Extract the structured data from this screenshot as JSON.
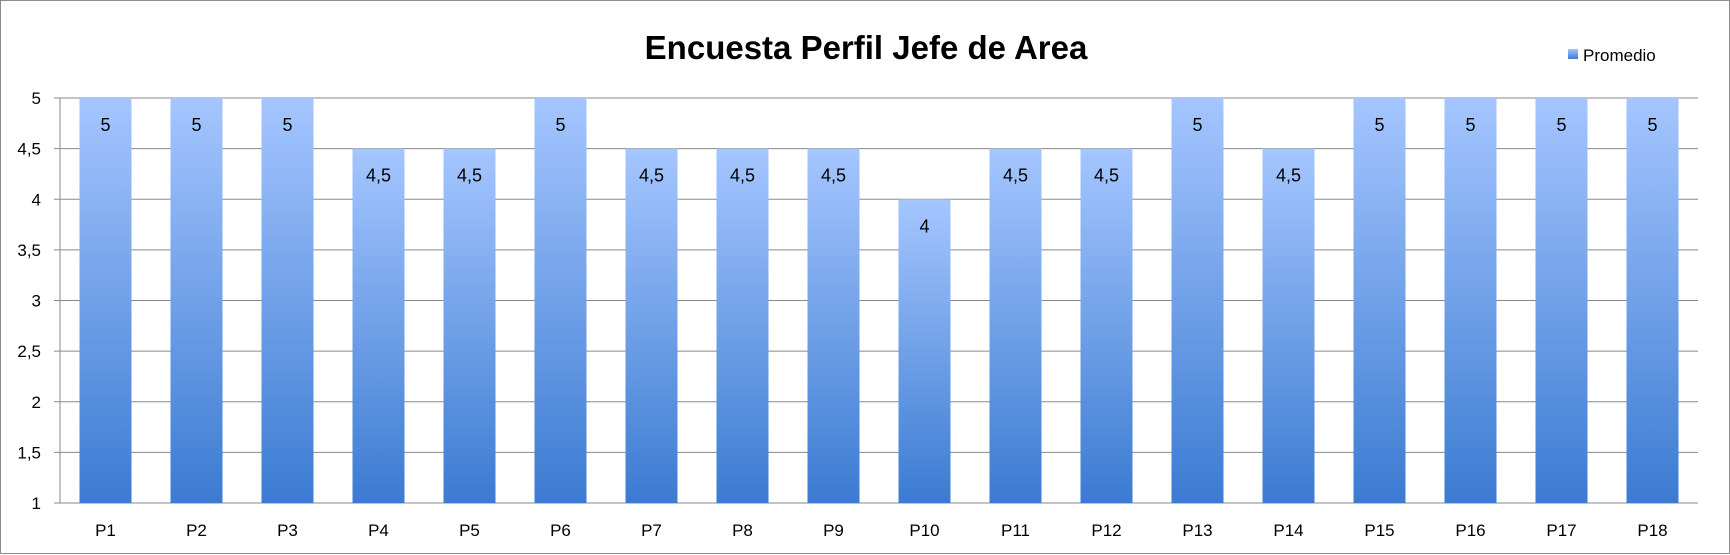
{
  "chart_data": {
    "type": "bar",
    "title": "Encuesta Perfil Jefe de Area",
    "xlabel": "",
    "ylabel": "",
    "categories": [
      "P1",
      "P2",
      "P3",
      "P4",
      "P5",
      "P6",
      "P7",
      "P8",
      "P9",
      "P10",
      "P11",
      "P12",
      "P13",
      "P14",
      "P15",
      "P16",
      "P17",
      "P18"
    ],
    "series": [
      {
        "name": "Promedio",
        "values": [
          5,
          5,
          5,
          4.5,
          4.5,
          5,
          4.5,
          4.5,
          4.5,
          4,
          4.5,
          4.5,
          5,
          4.5,
          5,
          5,
          5,
          5
        ],
        "data_labels": [
          "5",
          "5",
          "5",
          "4,5",
          "4,5",
          "5",
          "4,5",
          "4,5",
          "4,5",
          "4",
          "4,5",
          "4,5",
          "5",
          "4,5",
          "5",
          "5",
          "5",
          "5"
        ],
        "color_top": "#a5c6ff",
        "color_bottom": "#3b7bd1"
      }
    ],
    "ylim": [
      1,
      5
    ],
    "yticks": [
      1,
      1.5,
      2,
      2.5,
      3,
      3.5,
      4,
      4.5,
      5
    ],
    "ytick_labels": [
      "1",
      "1,5",
      "2",
      "2,5",
      "3",
      "3,5",
      "4",
      "4,5",
      "5"
    ],
    "grid": true,
    "legend_position": "top-right"
  }
}
